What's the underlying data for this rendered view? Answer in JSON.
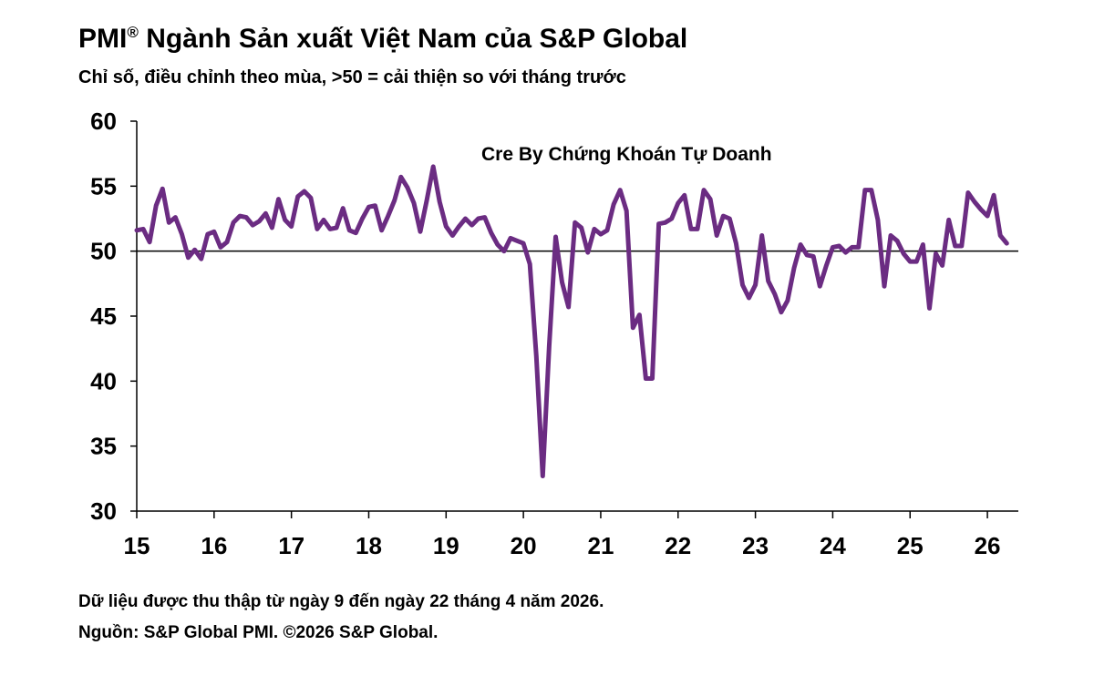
{
  "chart_data": {
    "type": "line",
    "title": "PMI",
    "title_mark": "®",
    "title_rest": " Ngành Sản xuất Việt Nam của S&P Global",
    "subtitle": "Chỉ số, điều chỉnh theo mùa, >50 = cải thiện so với tháng trước",
    "annotation": "Cre By Chứng Khoán Tự Doanh",
    "x_axis": {
      "ticks": [
        "15",
        "16",
        "17",
        "18",
        "19",
        "20",
        "21",
        "22",
        "23",
        "24",
        "25",
        "26"
      ],
      "tick_years": [
        2015,
        2016,
        2017,
        2018,
        2019,
        2020,
        2021,
        2022,
        2023,
        2024,
        2025,
        2026
      ],
      "range": [
        2015.0,
        2026.4
      ]
    },
    "y_axis": {
      "ticks": [
        "60",
        "55",
        "50",
        "45",
        "40",
        "35",
        "30"
      ],
      "tick_values": [
        60,
        55,
        50,
        45,
        40,
        35,
        30
      ],
      "range": [
        30,
        60
      ]
    },
    "reference_line": 50,
    "grid": false,
    "legend": "none",
    "line_color": "#6b2c82",
    "series": [
      {
        "start": "2015-01",
        "values": [
          51.6,
          51.7,
          50.7,
          53.5,
          54.8,
          52.2,
          52.6,
          51.3,
          49.5,
          50.1,
          49.4,
          51.3,
          51.5,
          50.3,
          50.7,
          52.2,
          52.7,
          52.6,
          52.0,
          52.3,
          52.9,
          51.8,
          54.0,
          52.4,
          51.9,
          54.2,
          54.6,
          54.1,
          51.7,
          52.4,
          51.7,
          51.8,
          53.3,
          51.6,
          51.4,
          52.5,
          53.4,
          53.5,
          51.6,
          52.7,
          53.9,
          55.7,
          54.9,
          53.7,
          51.5,
          53.9,
          56.5,
          53.8,
          51.9,
          51.2,
          51.9,
          52.5,
          52.0,
          52.5,
          52.6,
          51.4,
          50.5,
          50.0,
          51.0,
          50.8,
          50.6,
          49.0,
          41.9,
          32.7,
          42.7,
          51.1,
          47.6,
          45.7,
          52.2,
          51.8,
          49.9,
          51.7,
          51.3,
          51.6,
          53.6,
          54.7,
          53.1,
          44.1,
          45.1,
          40.2,
          40.2,
          52.1,
          52.2,
          52.5,
          53.7,
          54.3,
          51.7,
          51.7,
          54.7,
          54.0,
          51.2,
          52.7,
          52.5,
          50.6,
          47.4,
          46.4,
          47.4,
          51.2,
          47.7,
          46.7,
          45.3,
          46.2,
          48.7,
          50.5,
          49.7,
          49.6,
          47.3,
          48.9,
          50.3,
          50.4,
          49.9,
          50.3,
          50.3,
          54.7,
          54.7,
          52.4,
          47.3,
          51.2,
          50.8,
          49.8,
          49.2,
          49.2,
          50.5,
          45.6,
          49.8,
          48.9,
          52.4,
          50.4,
          50.4,
          54.5,
          53.8,
          53.2,
          52.7,
          54.3,
          51.2,
          50.6
        ]
      }
    ]
  },
  "footer": {
    "note": "Dữ liệu được thu thập từ ngày 9 đến ngày 22 tháng 4 năm 2026.",
    "source": "Nguồn: S&P Global PMI. ©2026 S&P Global."
  }
}
